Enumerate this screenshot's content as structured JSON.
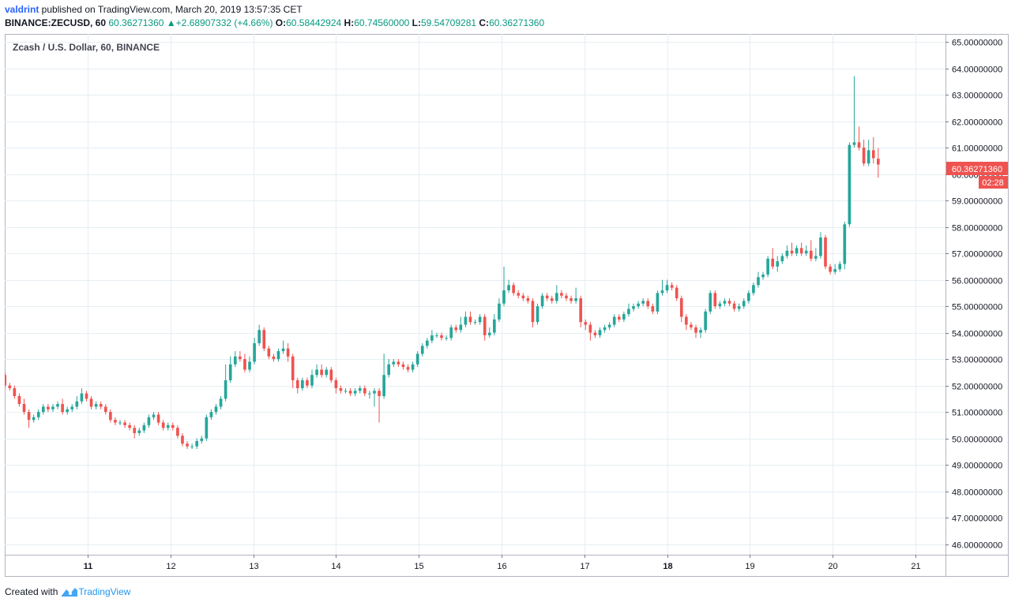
{
  "header": {
    "author": "valdrint",
    "published_text": " published on TradingView.com, March 20, 2019 13:57:35 CET"
  },
  "ohlc": {
    "symbol_label": "BINANCE:ZECUSD, 60",
    "last": "60.36271360",
    "change_arrow": "▲",
    "change": "+2.68907332 (+4.66%)",
    "o_label": "O:",
    "o": "60.58442924",
    "h_label": "H:",
    "h": "60.74560000",
    "l_label": "L:",
    "l": "59.54709281",
    "c_label": "C:",
    "c": "60.36271360"
  },
  "chart_title": "Zcash / U.S. Dollar, 60, BINANCE",
  "price_tag": {
    "value": "60.36271360",
    "countdown": "02:28"
  },
  "footer": {
    "created_with": "Created with",
    "brand": "TradingView"
  },
  "colors": {
    "up": "#26a69a",
    "down": "#ef5350",
    "grid": "#e6eef2",
    "axis_text": "#131722"
  },
  "chart_data": {
    "type": "candlestick",
    "title": "Zcash / U.S. Dollar, 60, BINANCE",
    "ylim": [
      45.6,
      65.3
    ],
    "y_ticks": [
      "46.00000000",
      "47.00000000",
      "48.00000000",
      "49.00000000",
      "50.00000000",
      "51.00000000",
      "52.00000000",
      "53.00000000",
      "54.00000000",
      "55.00000000",
      "56.00000000",
      "57.00000000",
      "58.00000000",
      "59.00000000",
      "60.00000000",
      "61.00000000",
      "62.00000000",
      "63.00000000",
      "64.00000000",
      "65.00000000"
    ],
    "x_ticks": [
      {
        "label": "11",
        "day": 11
      },
      {
        "label": "12",
        "day": 12
      },
      {
        "label": "13",
        "day": 13
      },
      {
        "label": "14",
        "day": 14
      },
      {
        "label": "15",
        "day": 15
      },
      {
        "label": "16",
        "day": 16
      },
      {
        "label": "17",
        "day": 17
      },
      {
        "label": "18",
        "day": 18
      },
      {
        "label": "19",
        "day": 19
      },
      {
        "label": "20",
        "day": 20
      },
      {
        "label": "21",
        "day": 21
      }
    ],
    "x_start_day": 10.0,
    "interval_hours": 1,
    "close": [
      52.0,
      51.9,
      51.6,
      51.3,
      51.0,
      50.7,
      50.8,
      51.0,
      51.2,
      51.1,
      51.2,
      51.3,
      51.0,
      51.1,
      51.2,
      51.4,
      51.7,
      51.5,
      51.2,
      51.3,
      51.2,
      51.0,
      50.7,
      50.6,
      50.6,
      50.5,
      50.4,
      50.2,
      50.3,
      50.5,
      50.8,
      50.9,
      50.6,
      50.4,
      50.5,
      50.4,
      50.1,
      49.8,
      49.7,
      49.7,
      49.9,
      50.0,
      50.8,
      51.0,
      51.2,
      51.5,
      52.2,
      52.8,
      53.1,
      53.0,
      52.6,
      52.9,
      53.6,
      54.1,
      53.4,
      53.1,
      53.0,
      53.3,
      53.4,
      53.1,
      52.2,
      51.9,
      52.2,
      52.0,
      52.4,
      52.6,
      52.4,
      52.6,
      52.2,
      51.9,
      51.8,
      51.8,
      51.7,
      51.8,
      51.9,
      51.7,
      51.7,
      51.8,
      51.6,
      52.4,
      52.8,
      52.9,
      52.8,
      52.7,
      52.6,
      52.8,
      53.2,
      53.5,
      53.7,
      53.9,
      53.9,
      53.8,
      53.8,
      54.2,
      54.1,
      54.3,
      54.6,
      54.4,
      54.4,
      54.6,
      53.9,
      54.0,
      54.5,
      55.1,
      55.6,
      55.8,
      55.5,
      55.4,
      55.3,
      55.2,
      54.4,
      55.0,
      55.4,
      55.3,
      55.2,
      55.5,
      55.4,
      55.3,
      55.2,
      55.3,
      54.4,
      54.3,
      54.0,
      53.9,
      54.1,
      54.2,
      54.3,
      54.6,
      54.5,
      54.7,
      54.9,
      55.0,
      55.1,
      55.2,
      55.0,
      54.8,
      55.5,
      55.6,
      55.8,
      55.7,
      55.3,
      54.6,
      54.3,
      54.2,
      54.0,
      54.1,
      54.8,
      55.5,
      55.0,
      55.1,
      55.2,
      55.1,
      54.9,
      55.0,
      55.2,
      55.5,
      55.8,
      56.1,
      56.2,
      56.8,
      56.5,
      56.7,
      56.9,
      57.1,
      57.0,
      57.2,
      57.0,
      57.1,
      56.8,
      56.9,
      57.6,
      56.5,
      56.3,
      56.4,
      56.6,
      58.1,
      61.1,
      61.2,
      61.0,
      60.4,
      60.9,
      60.6,
      60.36
    ],
    "open": [
      52.4,
      52.0,
      51.9,
      51.6,
      51.3,
      51.0,
      50.7,
      50.8,
      51.0,
      51.2,
      51.1,
      51.2,
      51.3,
      51.0,
      51.1,
      51.2,
      51.4,
      51.7,
      51.5,
      51.2,
      51.3,
      51.2,
      51.0,
      50.7,
      50.6,
      50.6,
      50.5,
      50.4,
      50.2,
      50.3,
      50.5,
      50.8,
      50.9,
      50.6,
      50.4,
      50.5,
      50.4,
      50.1,
      49.8,
      49.7,
      49.7,
      49.9,
      50.0,
      50.8,
      51.0,
      51.2,
      51.5,
      52.2,
      52.8,
      53.1,
      53.0,
      52.6,
      52.9,
      53.6,
      54.1,
      53.4,
      53.1,
      53.0,
      53.3,
      53.4,
      53.1,
      52.2,
      51.9,
      52.2,
      52.0,
      52.4,
      52.6,
      52.4,
      52.6,
      52.2,
      51.9,
      51.8,
      51.8,
      51.7,
      51.8,
      51.9,
      51.7,
      51.7,
      51.8,
      51.6,
      52.4,
      52.8,
      52.9,
      52.8,
      52.7,
      52.6,
      52.8,
      53.2,
      53.5,
      53.7,
      53.9,
      53.9,
      53.8,
      53.8,
      54.2,
      54.1,
      54.3,
      54.6,
      54.4,
      54.4,
      54.6,
      53.9,
      54.0,
      54.5,
      55.1,
      55.6,
      55.8,
      55.5,
      55.4,
      55.3,
      55.2,
      54.4,
      55.0,
      55.4,
      55.3,
      55.2,
      55.5,
      55.4,
      55.3,
      55.2,
      55.3,
      54.4,
      54.3,
      54.0,
      53.9,
      54.1,
      54.2,
      54.3,
      54.6,
      54.5,
      54.7,
      54.9,
      55.0,
      55.1,
      55.2,
      55.0,
      54.8,
      55.5,
      55.6,
      55.8,
      55.7,
      55.3,
      54.6,
      54.3,
      54.2,
      54.0,
      54.1,
      54.8,
      55.5,
      55.0,
      55.1,
      55.2,
      55.1,
      54.9,
      55.0,
      55.2,
      55.5,
      55.8,
      56.1,
      56.2,
      56.8,
      56.5,
      56.7,
      56.9,
      57.1,
      57.0,
      57.2,
      57.0,
      57.1,
      56.8,
      56.9,
      57.6,
      56.5,
      56.3,
      56.4,
      56.6,
      58.1,
      61.1,
      61.2,
      61.0,
      60.4,
      60.9,
      60.58
    ],
    "high_extra": [
      0.1,
      0.1,
      0.1,
      0.1,
      0.2,
      0.1,
      0.1,
      0.1,
      0.1,
      0.1,
      0.1,
      0.1,
      0.2,
      0.1,
      0.1,
      0.2,
      0.2,
      0.1,
      0.1,
      0.1,
      0.1,
      0.1,
      0.1,
      0.1,
      0.1,
      0.1,
      0.1,
      0.1,
      0.1,
      0.1,
      0.1,
      0.1,
      0.1,
      0.1,
      0.1,
      0.1,
      0.1,
      0.1,
      0.1,
      0.1,
      0.1,
      0.1,
      0.1,
      0.1,
      0.1,
      0.1,
      0.6,
      0.3,
      0.2,
      0.2,
      0.2,
      0.2,
      0.2,
      0.2,
      0.1,
      0.1,
      0.1,
      0.1,
      0.3,
      0.2,
      0.1,
      0.1,
      0.1,
      0.1,
      0.2,
      0.2,
      0.2,
      0.1,
      0.1,
      0.1,
      0.1,
      0.1,
      0.1,
      0.1,
      0.1,
      0.1,
      0.1,
      0.1,
      0.1,
      0.8,
      0.2,
      0.1,
      0.1,
      0.1,
      0.1,
      0.1,
      0.1,
      0.1,
      0.1,
      0.2,
      0.1,
      0.1,
      0.1,
      0.1,
      0.1,
      0.3,
      0.2,
      0.2,
      0.1,
      0.1,
      0.1,
      0.2,
      0.2,
      0.2,
      0.9,
      0.2,
      0.1,
      0.1,
      0.1,
      0.1,
      0.1,
      0.1,
      0.1,
      0.1,
      0.1,
      0.3,
      0.1,
      0.1,
      0.1,
      0.4,
      0.1,
      0.1,
      0.1,
      0.1,
      0.1,
      0.1,
      0.1,
      0.1,
      0.1,
      0.1,
      0.2,
      0.1,
      0.1,
      0.1,
      0.1,
      0.1,
      0.1,
      0.4,
      0.2,
      0.1,
      0.1,
      0.1,
      0.1,
      0.1,
      0.1,
      0.1,
      0.1,
      0.1,
      0.1,
      0.1,
      0.1,
      0.1,
      0.1,
      0.1,
      0.1,
      0.1,
      0.1,
      0.2,
      0.1,
      0.1,
      0.4,
      0.2,
      0.1,
      0.2,
      0.3,
      0.1,
      0.2,
      0.2,
      0.4,
      0.3,
      0.2,
      0.1,
      0.1,
      0.2,
      0.1,
      0.1,
      0.1,
      2.5,
      0.6,
      0.3,
      0.4,
      0.5,
      0.4,
      0.2
    ],
    "low_extra": [
      0.1,
      0.1,
      0.1,
      0.1,
      0.1,
      0.3,
      0.1,
      0.1,
      0.1,
      0.1,
      0.1,
      0.1,
      0.1,
      0.1,
      0.1,
      0.1,
      0.1,
      0.1,
      0.1,
      0.1,
      0.1,
      0.1,
      0.1,
      0.1,
      0.1,
      0.1,
      0.1,
      0.2,
      0.1,
      0.1,
      0.1,
      0.1,
      0.1,
      0.1,
      0.1,
      0.1,
      0.1,
      0.1,
      0.1,
      0.1,
      0.1,
      0.1,
      0.1,
      0.1,
      0.1,
      0.1,
      0.1,
      0.1,
      0.1,
      0.1,
      0.1,
      0.1,
      0.1,
      0.1,
      0.1,
      0.1,
      0.1,
      0.1,
      0.1,
      0.2,
      0.3,
      0.2,
      0.1,
      0.1,
      0.1,
      0.1,
      0.1,
      0.1,
      0.1,
      0.2,
      0.1,
      0.1,
      0.1,
      0.1,
      0.1,
      0.1,
      0.2,
      0.5,
      1.0,
      0.1,
      0.1,
      0.1,
      0.1,
      0.1,
      0.1,
      0.1,
      0.1,
      0.1,
      0.1,
      0.1,
      0.1,
      0.1,
      0.1,
      0.1,
      0.1,
      0.1,
      0.1,
      0.1,
      0.1,
      0.1,
      0.2,
      0.1,
      0.1,
      0.1,
      0.1,
      0.1,
      0.1,
      0.1,
      0.1,
      0.1,
      0.2,
      0.1,
      0.1,
      0.1,
      0.1,
      0.1,
      0.1,
      0.1,
      0.1,
      0.1,
      0.2,
      0.2,
      0.3,
      0.1,
      0.1,
      0.1,
      0.1,
      0.1,
      0.1,
      0.1,
      0.1,
      0.1,
      0.1,
      0.1,
      0.1,
      0.1,
      0.1,
      0.1,
      0.1,
      0.1,
      0.1,
      0.2,
      0.2,
      0.1,
      0.2,
      0.2,
      0.1,
      0.1,
      0.1,
      0.1,
      0.1,
      0.1,
      0.1,
      0.1,
      0.1,
      0.1,
      0.1,
      0.1,
      0.1,
      0.1,
      0.1,
      0.2,
      0.1,
      0.1,
      0.1,
      0.1,
      0.1,
      0.1,
      0.1,
      0.1,
      0.1,
      0.1,
      0.1,
      0.1,
      0.1,
      0.2,
      0.1,
      0.1,
      0.1,
      0.1,
      0.1,
      0.2,
      0.5,
      0.4,
      0.2,
      0.5,
      0.8
    ]
  }
}
